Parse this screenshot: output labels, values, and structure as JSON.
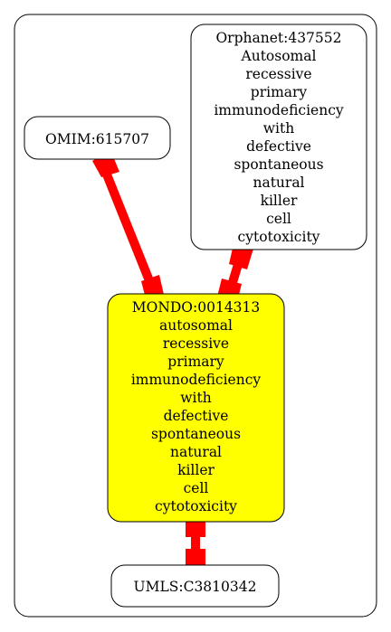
{
  "colors": {
    "edge": "#ff0000",
    "highlight_fill": "#ffff00",
    "node_fill": "#ffffff",
    "stroke": "#000000"
  },
  "nodes": {
    "omim": {
      "lines": [
        "OMIM:615707"
      ]
    },
    "orphanet": {
      "lines": [
        "Orphanet:437552",
        "Autosomal",
        "recessive",
        "primary",
        "immunodeficiency",
        "with",
        "defective",
        "spontaneous",
        "natural",
        "killer",
        "cell",
        "cytotoxicity"
      ]
    },
    "mondo": {
      "lines": [
        "MONDO:0014313",
        "autosomal",
        "recessive",
        "primary",
        "immunodeficiency",
        "with",
        "defective",
        "spontaneous",
        "natural",
        "killer",
        "cell",
        "cytotoxicity"
      ]
    },
    "umls": {
      "lines": [
        "UMLS:C3810342"
      ]
    }
  }
}
